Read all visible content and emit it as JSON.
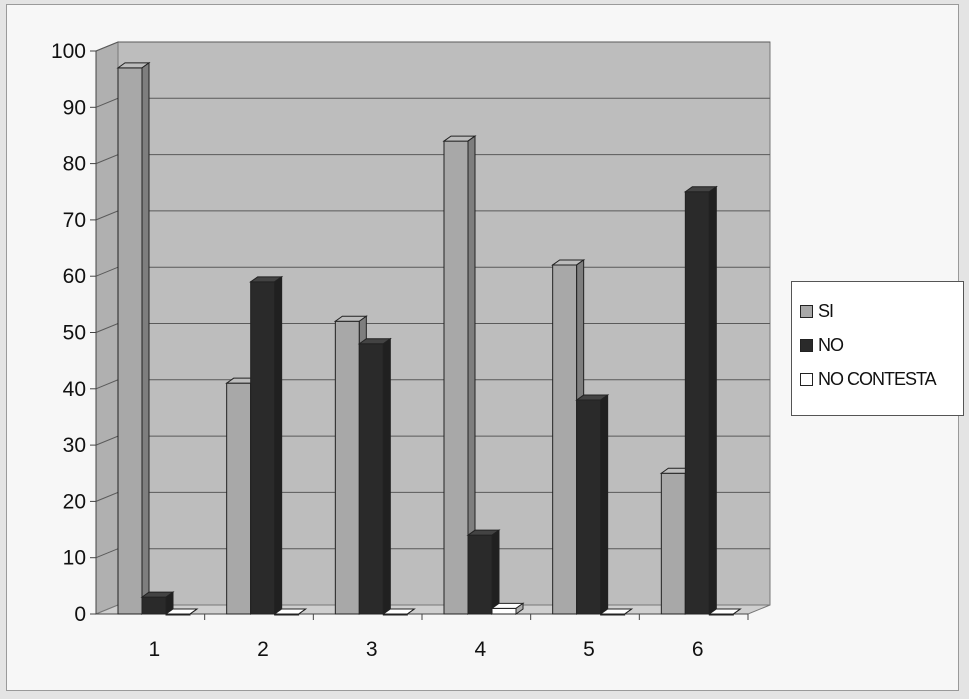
{
  "chart_data": {
    "type": "bar",
    "categories": [
      "1",
      "2",
      "3",
      "4",
      "5",
      "6"
    ],
    "series": [
      {
        "name": "SI",
        "values": [
          97,
          41,
          52,
          84,
          62,
          25
        ],
        "color": "#a8a8a8"
      },
      {
        "name": "NO",
        "values": [
          3,
          59,
          48,
          14,
          38,
          75
        ],
        "color": "#2a2a2a"
      },
      {
        "name": "NO CONTESTA",
        "values": [
          0,
          0,
          0,
          1,
          0,
          0
        ],
        "color": "#ffffff"
      }
    ],
    "yticks": [
      "0",
      "10",
      "20",
      "30",
      "40",
      "50",
      "60",
      "70",
      "80",
      "90",
      "100"
    ],
    "ylim": [
      0,
      100
    ],
    "grid": true,
    "legend_position": "right",
    "plot_background": "#bdbdbd"
  }
}
